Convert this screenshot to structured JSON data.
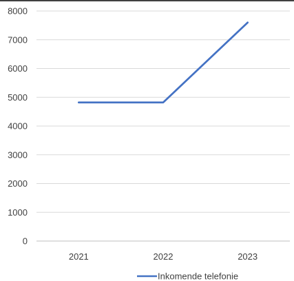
{
  "chart_data": {
    "type": "line",
    "title": "",
    "xlabel": "",
    "ylabel": "",
    "categories": [
      "2021",
      "2022",
      "2023"
    ],
    "series": [
      {
        "name": "Inkomende telefonie",
        "values": [
          4820,
          4820,
          7600
        ],
        "color": "#4472C4"
      }
    ],
    "ylim": [
      0,
      8000
    ],
    "yticks": [
      "0",
      "1000",
      "2000",
      "3000",
      "4000",
      "5000",
      "6000",
      "7000",
      "8000"
    ],
    "grid": "horizontal",
    "legend_position": "bottom"
  }
}
